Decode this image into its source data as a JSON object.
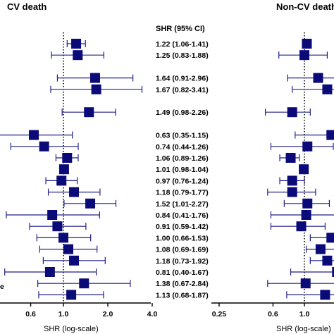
{
  "chart_data": [
    {
      "type": "forest",
      "title": "CV death",
      "column_header": "SHR (95% CI)",
      "xlabel": "SHR (log-scale)",
      "xscale": "log",
      "reference_line": 1.0,
      "ticks": [
        "0.6",
        "1.0",
        "2.0",
        "4.0"
      ],
      "tick_values": [
        0.6,
        1.0,
        2.0,
        4.0
      ],
      "marker_color": "#0a0a78",
      "rows": [
        {
          "slot": 0,
          "est": 1.22,
          "lo": 1.06,
          "hi": 1.41,
          "label": "1.22 (1.06-1.41)"
        },
        {
          "slot": 1,
          "est": 1.25,
          "lo": 0.83,
          "hi": 1.88,
          "label": "1.25 (0.83-1.88)"
        },
        {
          "slot": 3,
          "est": 1.64,
          "lo": 0.91,
          "hi": 2.96,
          "label": "1.64 (0.91-2.96)"
        },
        {
          "slot": 4,
          "est": 1.67,
          "lo": 0.82,
          "hi": 3.41,
          "label": "1.67 (0.82-3.41)"
        },
        {
          "slot": 6,
          "est": 1.49,
          "lo": 0.98,
          "hi": 2.26,
          "label": "1.49 (0.98-2.26)"
        },
        {
          "slot": 8,
          "est": 0.63,
          "lo": 0.35,
          "hi": 1.15,
          "label": "0.63 (0.35-1.15)"
        },
        {
          "slot": 9,
          "est": 0.74,
          "lo": 0.44,
          "hi": 1.26,
          "label": "0.74 (0.44-1.26)"
        },
        {
          "slot": 10,
          "est": 1.06,
          "lo": 0.89,
          "hi": 1.26,
          "label": "1.06 (0.89-1.26)"
        },
        {
          "slot": 11,
          "est": 1.01,
          "lo": 0.98,
          "hi": 1.04,
          "label": "1.01 (0.98-1.04)"
        },
        {
          "slot": 12,
          "est": 0.97,
          "lo": 0.76,
          "hi": 1.24,
          "label": "0.97 (0.76-1.24)"
        },
        {
          "slot": 13,
          "est": 1.18,
          "lo": 0.79,
          "hi": 1.77,
          "label": "1.18 (0.79-1.77)"
        },
        {
          "slot": 14,
          "est": 1.52,
          "lo": 1.01,
          "hi": 2.27,
          "label": "1.52 (1.01-2.27)"
        },
        {
          "slot": 15,
          "est": 0.84,
          "lo": 0.41,
          "hi": 1.76,
          "label": "0.84 (0.41-1.76)"
        },
        {
          "slot": 16,
          "est": 0.91,
          "lo": 0.59,
          "hi": 1.42,
          "label": "0.91 (0.59-1.42)"
        },
        {
          "slot": 17,
          "est": 1.0,
          "lo": 0.66,
          "hi": 1.53,
          "label": "1.00 (0.66-1.53)"
        },
        {
          "slot": 18,
          "est": 1.08,
          "lo": 0.69,
          "hi": 1.69,
          "label": "1.08 (0.69-1.69)"
        },
        {
          "slot": 19,
          "est": 1.18,
          "lo": 0.73,
          "hi": 1.92,
          "label": "1.18 (0.73-1.92)"
        },
        {
          "slot": 20,
          "est": 0.81,
          "lo": 0.4,
          "hi": 1.67,
          "label": "0.81 (0.40-1.67)"
        },
        {
          "slot": 21,
          "est": 1.38,
          "lo": 0.67,
          "hi": 2.84,
          "label": "1.38 (0.67-2.84)"
        },
        {
          "slot": 22,
          "est": 1.13,
          "lo": 0.68,
          "hi": 1.87,
          "label": "1.13 (0.68-1.87)"
        }
      ]
    },
    {
      "type": "forest",
      "title": "Non-CV death",
      "xlabel": "SHR (log-scale)",
      "xscale": "log",
      "reference_line": 1.0,
      "ticks": [
        "0.25",
        "0.6",
        "1.0"
      ],
      "tick_values": [
        0.25,
        0.6,
        1.0
      ],
      "marker_color": "#0a0a78",
      "rows": [
        {
          "slot": 0,
          "est": 1.04,
          "lo": 0.99,
          "hi": 1.12
        },
        {
          "slot": 1,
          "est": 1.0,
          "lo": 0.66,
          "hi": 1.45
        },
        {
          "slot": 3,
          "est": 1.25,
          "lo": 0.76,
          "hi": 1.8
        },
        {
          "slot": 4,
          "est": 1.45,
          "lo": 0.82,
          "hi": 2.0
        },
        {
          "slot": 6,
          "est": 0.82,
          "lo": 0.53,
          "hi": 1.1
        },
        {
          "slot": 8,
          "est": 1.55,
          "lo": 0.86,
          "hi": 2.2
        },
        {
          "slot": 9,
          "est": 1.05,
          "lo": 0.58,
          "hi": 1.6
        },
        {
          "slot": 10,
          "est": 0.8,
          "lo": 0.67,
          "hi": 0.92
        },
        {
          "slot": 11,
          "est": 0.99,
          "lo": 0.95,
          "hi": 1.03
        },
        {
          "slot": 12,
          "est": 0.82,
          "lo": 0.67,
          "hi": 1.0
        },
        {
          "slot": 13,
          "est": 0.82,
          "lo": 0.55,
          "hi": 1.2
        },
        {
          "slot": 14,
          "est": 1.05,
          "lo": 0.72,
          "hi": 1.5
        },
        {
          "slot": 15,
          "est": 1.03,
          "lo": 0.58,
          "hi": 1.7
        },
        {
          "slot": 16,
          "est": 0.95,
          "lo": 0.58,
          "hi": 1.4
        },
        {
          "slot": 17,
          "est": 1.55,
          "lo": 1.1,
          "hi": 2.2
        },
        {
          "slot": 18,
          "est": 1.3,
          "lo": 1.03,
          "hi": 1.9
        },
        {
          "slot": 19,
          "est": 1.45,
          "lo": 1.1,
          "hi": 2.0
        },
        {
          "slot": 20,
          "est": 1.7,
          "lo": 0.8,
          "hi": 3.0
        },
        {
          "slot": 21,
          "est": 1.02,
          "lo": 0.55,
          "hi": 1.8
        },
        {
          "slot": 22,
          "est": 1.4,
          "lo": 0.75,
          "hi": 2.3
        }
      ]
    }
  ],
  "left_cut_label": "e"
}
